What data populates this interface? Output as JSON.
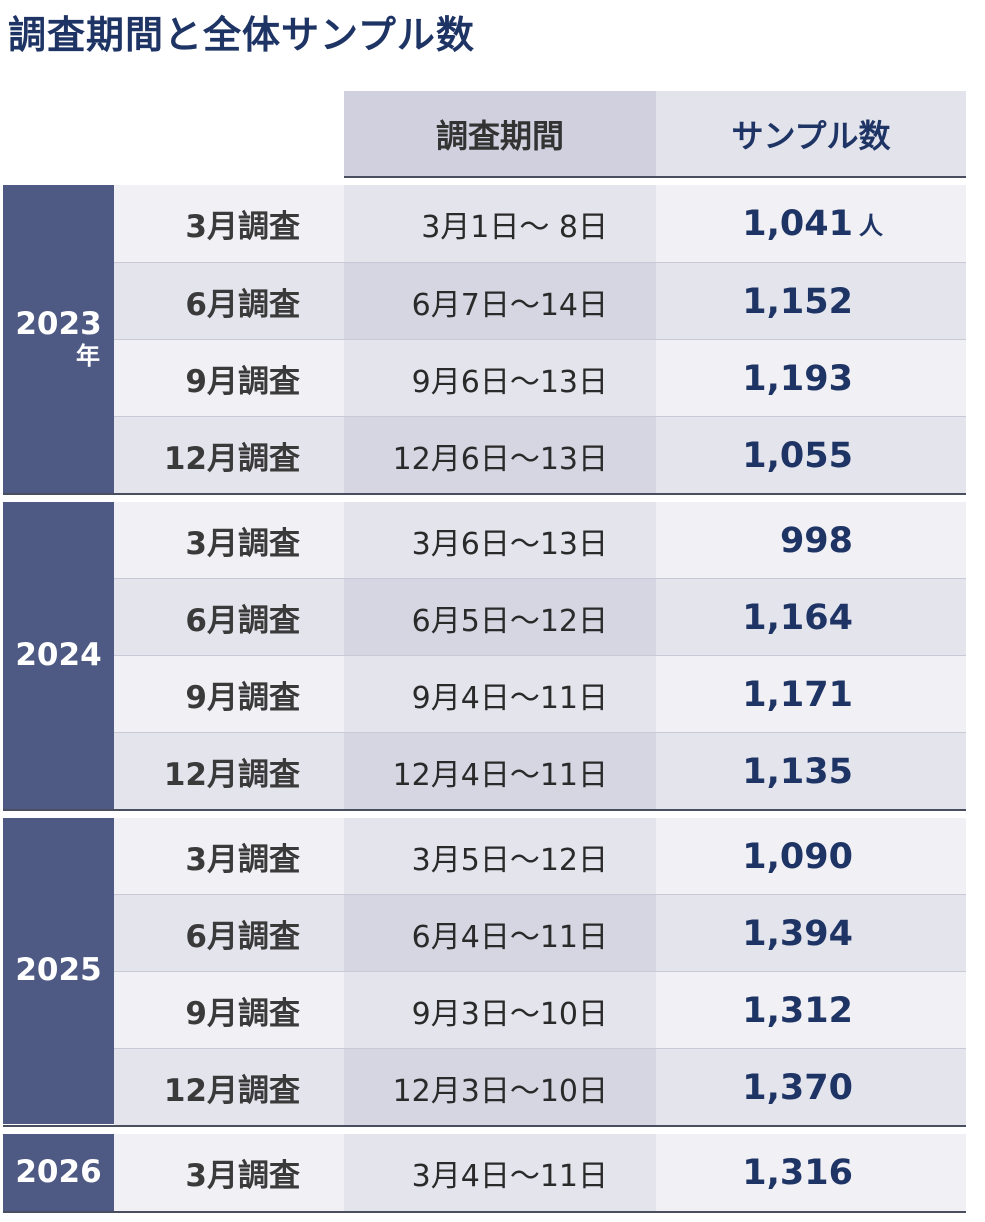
{
  "title": "調査期間と全体サンプル数",
  "header": {
    "period": "調査期間",
    "samples": "サンプル数"
  },
  "unit": "人",
  "groups": [
    {
      "year": "2023",
      "year_suffix": "年",
      "rows": [
        {
          "survey": "3月調査",
          "period": "3月1日～ 8日",
          "samples": "1,041"
        },
        {
          "survey": "6月調査",
          "period": "6月7日～14日",
          "samples": "1,152"
        },
        {
          "survey": "9月調査",
          "period": "9月6日～13日",
          "samples": "1,193"
        },
        {
          "survey": "12月調査",
          "period": "12月6日～13日",
          "samples": "1,055"
        }
      ]
    },
    {
      "year": "2024",
      "rows": [
        {
          "survey": "3月調査",
          "period": "3月6日～13日",
          "samples": "998"
        },
        {
          "survey": "6月調査",
          "period": "6月5日～12日",
          "samples": "1,164"
        },
        {
          "survey": "9月調査",
          "period": "9月4日～11日",
          "samples": "1,171"
        },
        {
          "survey": "12月調査",
          "period": "12月4日～11日",
          "samples": "1,135"
        }
      ]
    },
    {
      "year": "2025",
      "rows": [
        {
          "survey": "3月調査",
          "period": "3月5日～12日",
          "samples": "1,090"
        },
        {
          "survey": "6月調査",
          "period": "6月4日～11日",
          "samples": "1,394"
        },
        {
          "survey": "9月調査",
          "period": "9月3日～10日",
          "samples": "1,312"
        },
        {
          "survey": "12月調査",
          "period": "12月3日～10日",
          "samples": "1,370"
        }
      ]
    },
    {
      "year": "2026",
      "rows": [
        {
          "survey": "3月調査",
          "period": "3月4日～11日",
          "samples": "1,316"
        }
      ]
    }
  ]
}
